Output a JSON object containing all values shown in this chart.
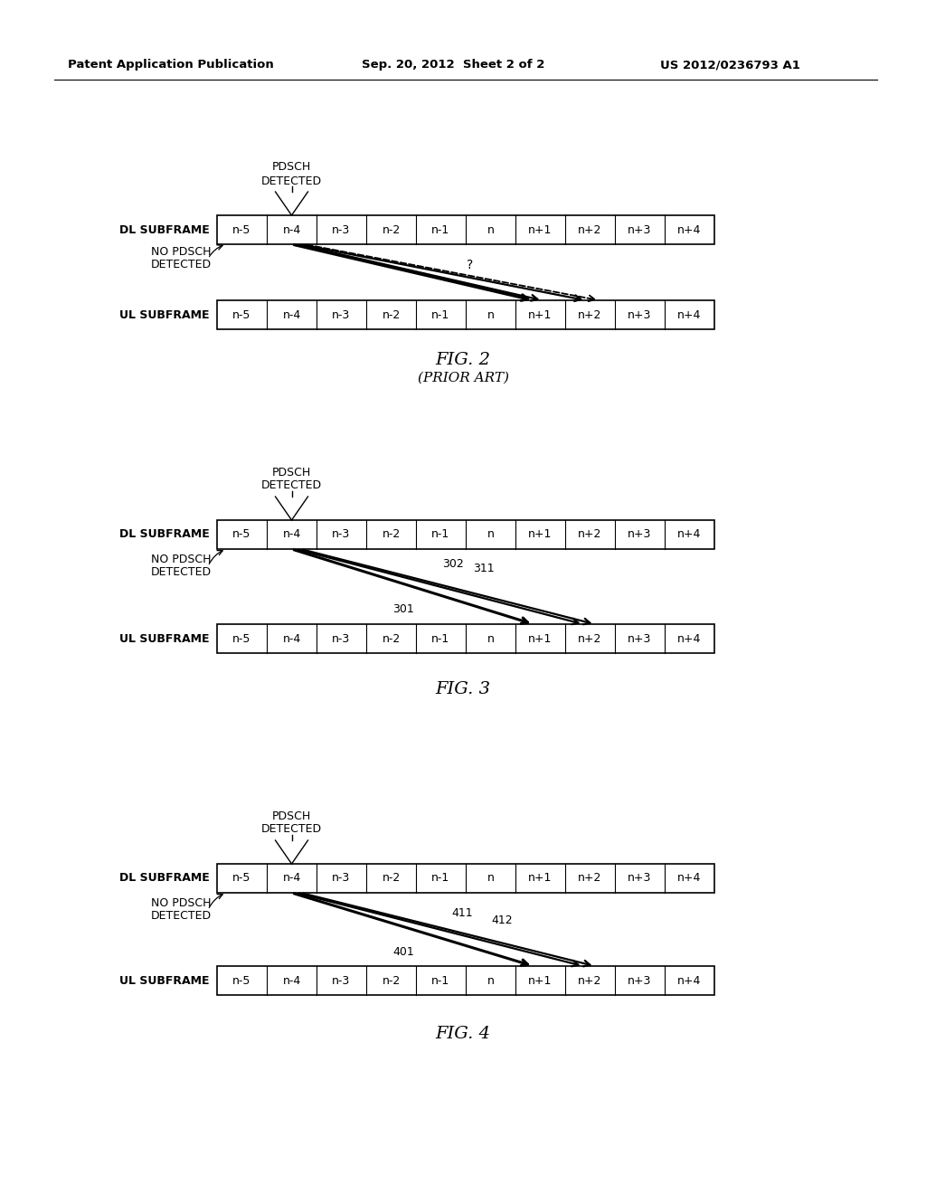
{
  "header_left": "Patent Application Publication",
  "header_center": "Sep. 20, 2012  Sheet 2 of 2",
  "header_right": "US 2012/0236793 A1",
  "subframe_labels": [
    "n-5",
    "n-4",
    "n-3",
    "n-2",
    "n-1",
    "n",
    "n+1",
    "n+2",
    "n+3",
    "n+4"
  ],
  "fig2_caption": "FIG. 2",
  "fig2_subcaption": "(PRIOR ART)",
  "fig3_caption": "FIG. 3",
  "fig4_caption": "FIG. 4",
  "bg_color": "#ffffff"
}
